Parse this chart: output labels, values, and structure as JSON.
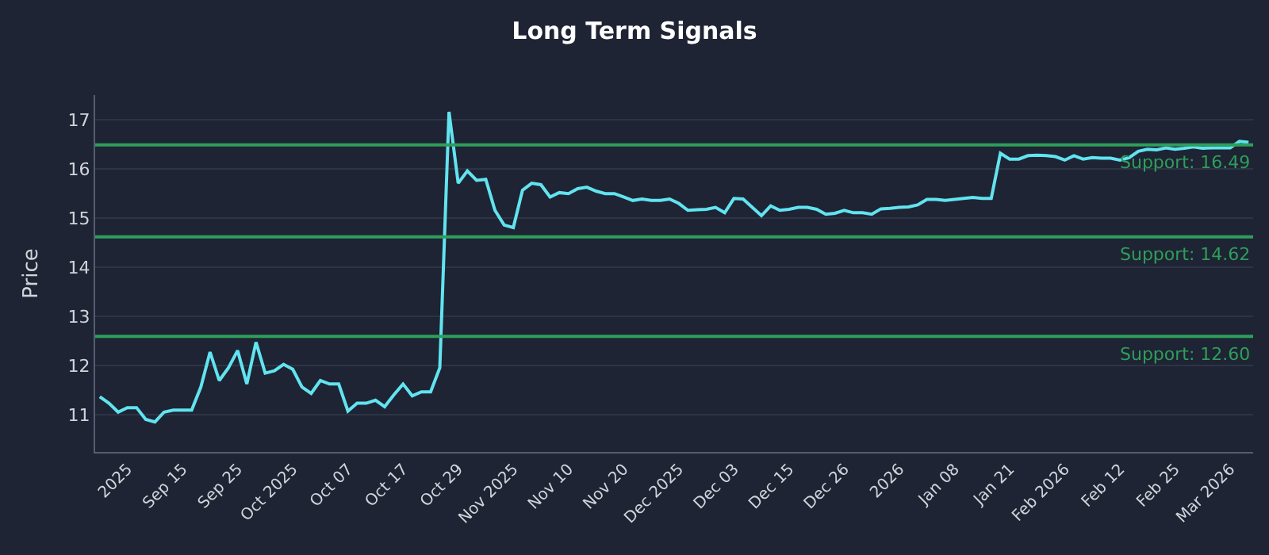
{
  "chart_data": {
    "type": "line",
    "title": "Long Term Signals",
    "ylabel": "Price",
    "categories": [
      null,
      null,
      null,
      "2025",
      null,
      null,
      null,
      null,
      null,
      "Sep 15",
      null,
      null,
      null,
      null,
      null,
      "Sep 25",
      null,
      null,
      null,
      null,
      null,
      "Oct 2025",
      null,
      null,
      null,
      null,
      null,
      "Oct 07",
      null,
      null,
      null,
      null,
      null,
      "Oct 17",
      null,
      null,
      null,
      null,
      null,
      "Oct 29",
      null,
      null,
      null,
      null,
      null,
      "Nov 2025",
      null,
      null,
      null,
      null,
      null,
      "Nov 10",
      null,
      null,
      null,
      null,
      null,
      "Nov 20",
      null,
      null,
      null,
      null,
      null,
      "Dec 2025",
      null,
      null,
      null,
      null,
      null,
      "Dec 03",
      null,
      null,
      null,
      null,
      null,
      "Dec 15",
      null,
      null,
      null,
      null,
      null,
      "Dec 26",
      null,
      null,
      null,
      null,
      null,
      "2026",
      null,
      null,
      null,
      null,
      null,
      "Jan 08",
      null,
      null,
      null,
      null,
      null,
      "Jan 21",
      null,
      null,
      null,
      null,
      null,
      "Feb 2026",
      null,
      null,
      null,
      null,
      null,
      "Feb 12",
      null,
      null,
      null,
      null,
      null,
      "Feb 25",
      null,
      null,
      null,
      null,
      null,
      "Mar 2026",
      null,
      null
    ],
    "series": [
      {
        "color": "#62e3f0",
        "values": [
          11.37,
          11.24,
          11.06,
          11.15,
          11.15,
          10.91,
          10.86,
          11.06,
          11.1,
          11.1,
          11.1,
          11.57,
          12.28,
          11.7,
          11.96,
          12.31,
          11.63,
          12.48,
          11.85,
          11.9,
          12.03,
          11.93,
          11.57,
          11.44,
          11.7,
          11.63,
          11.63,
          11.08,
          11.24,
          11.24,
          11.3,
          11.17,
          11.41,
          11.63,
          11.39,
          11.47,
          11.47,
          11.96,
          17.16,
          15.71,
          15.96,
          15.77,
          15.79,
          15.16,
          14.86,
          14.81,
          15.57,
          15.71,
          15.68,
          15.43,
          15.52,
          15.5,
          15.6,
          15.63,
          15.55,
          15.5,
          15.5,
          15.43,
          15.36,
          15.39,
          15.36,
          15.36,
          15.39,
          15.3,
          15.16,
          15.17,
          15.18,
          15.22,
          15.11,
          15.4,
          15.39,
          15.22,
          15.05,
          15.25,
          15.16,
          15.18,
          15.22,
          15.22,
          15.18,
          15.08,
          15.1,
          15.16,
          15.11,
          15.11,
          15.08,
          15.19,
          15.2,
          15.22,
          15.23,
          15.27,
          15.38,
          15.38,
          15.36,
          15.38,
          15.4,
          15.42,
          15.4,
          15.4,
          16.32,
          16.2,
          16.2,
          16.27,
          16.28,
          16.27,
          16.25,
          16.18,
          16.27,
          16.2,
          16.23,
          16.22,
          16.22,
          16.18,
          16.23,
          16.36,
          16.4,
          16.39,
          16.43,
          16.4,
          16.42,
          16.45,
          16.42,
          16.43,
          16.43,
          16.43,
          16.56,
          16.54
        ]
      }
    ],
    "ylim": [
      10.25,
      17.5
    ],
    "yticks": [
      11,
      12,
      13,
      14,
      15,
      16,
      17
    ],
    "grid": "y",
    "marker": "none",
    "line_style": "solid",
    "ref_lines": [
      {
        "axis": "y",
        "value": 16.49,
        "label": "Support: 16.49",
        "color": "#2e9e5b"
      },
      {
        "axis": "y",
        "value": 14.62,
        "label": "Support: 14.62",
        "color": "#2e9e5b"
      },
      {
        "axis": "y",
        "value": 12.6,
        "label": "Support: 12.60",
        "color": "#2e9e5b"
      }
    ]
  }
}
